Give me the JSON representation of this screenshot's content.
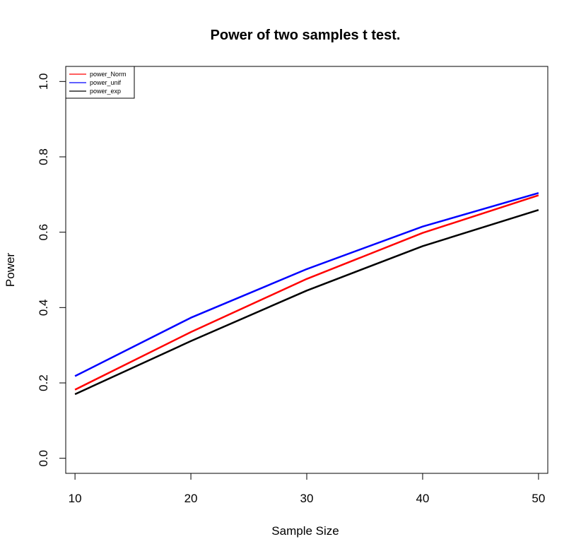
{
  "chart_data": {
    "type": "line",
    "title": "Power of two samples t test.",
    "xlabel": "Sample Size",
    "ylabel": "Power",
    "x": [
      10,
      20,
      30,
      40,
      50
    ],
    "xticks": [
      "10",
      "20",
      "30",
      "40",
      "50"
    ],
    "yticks": [
      "0.0",
      "0.2",
      "0.4",
      "0.6",
      "0.8",
      "1.0"
    ],
    "xlim": [
      9.2,
      50.8
    ],
    "ylim": [
      -0.04,
      1.04
    ],
    "grid": false,
    "legend_position": "top-left",
    "series": [
      {
        "name": "power_Norm",
        "color": "#ff0000",
        "values": [
          0.182,
          0.335,
          0.476,
          0.598,
          0.698
        ]
      },
      {
        "name": "power_unif",
        "color": "#0000ff",
        "values": [
          0.218,
          0.373,
          0.502,
          0.615,
          0.704
        ]
      },
      {
        "name": "power_exp",
        "color": "#000000",
        "values": [
          0.17,
          0.311,
          0.445,
          0.563,
          0.659
        ]
      }
    ]
  }
}
